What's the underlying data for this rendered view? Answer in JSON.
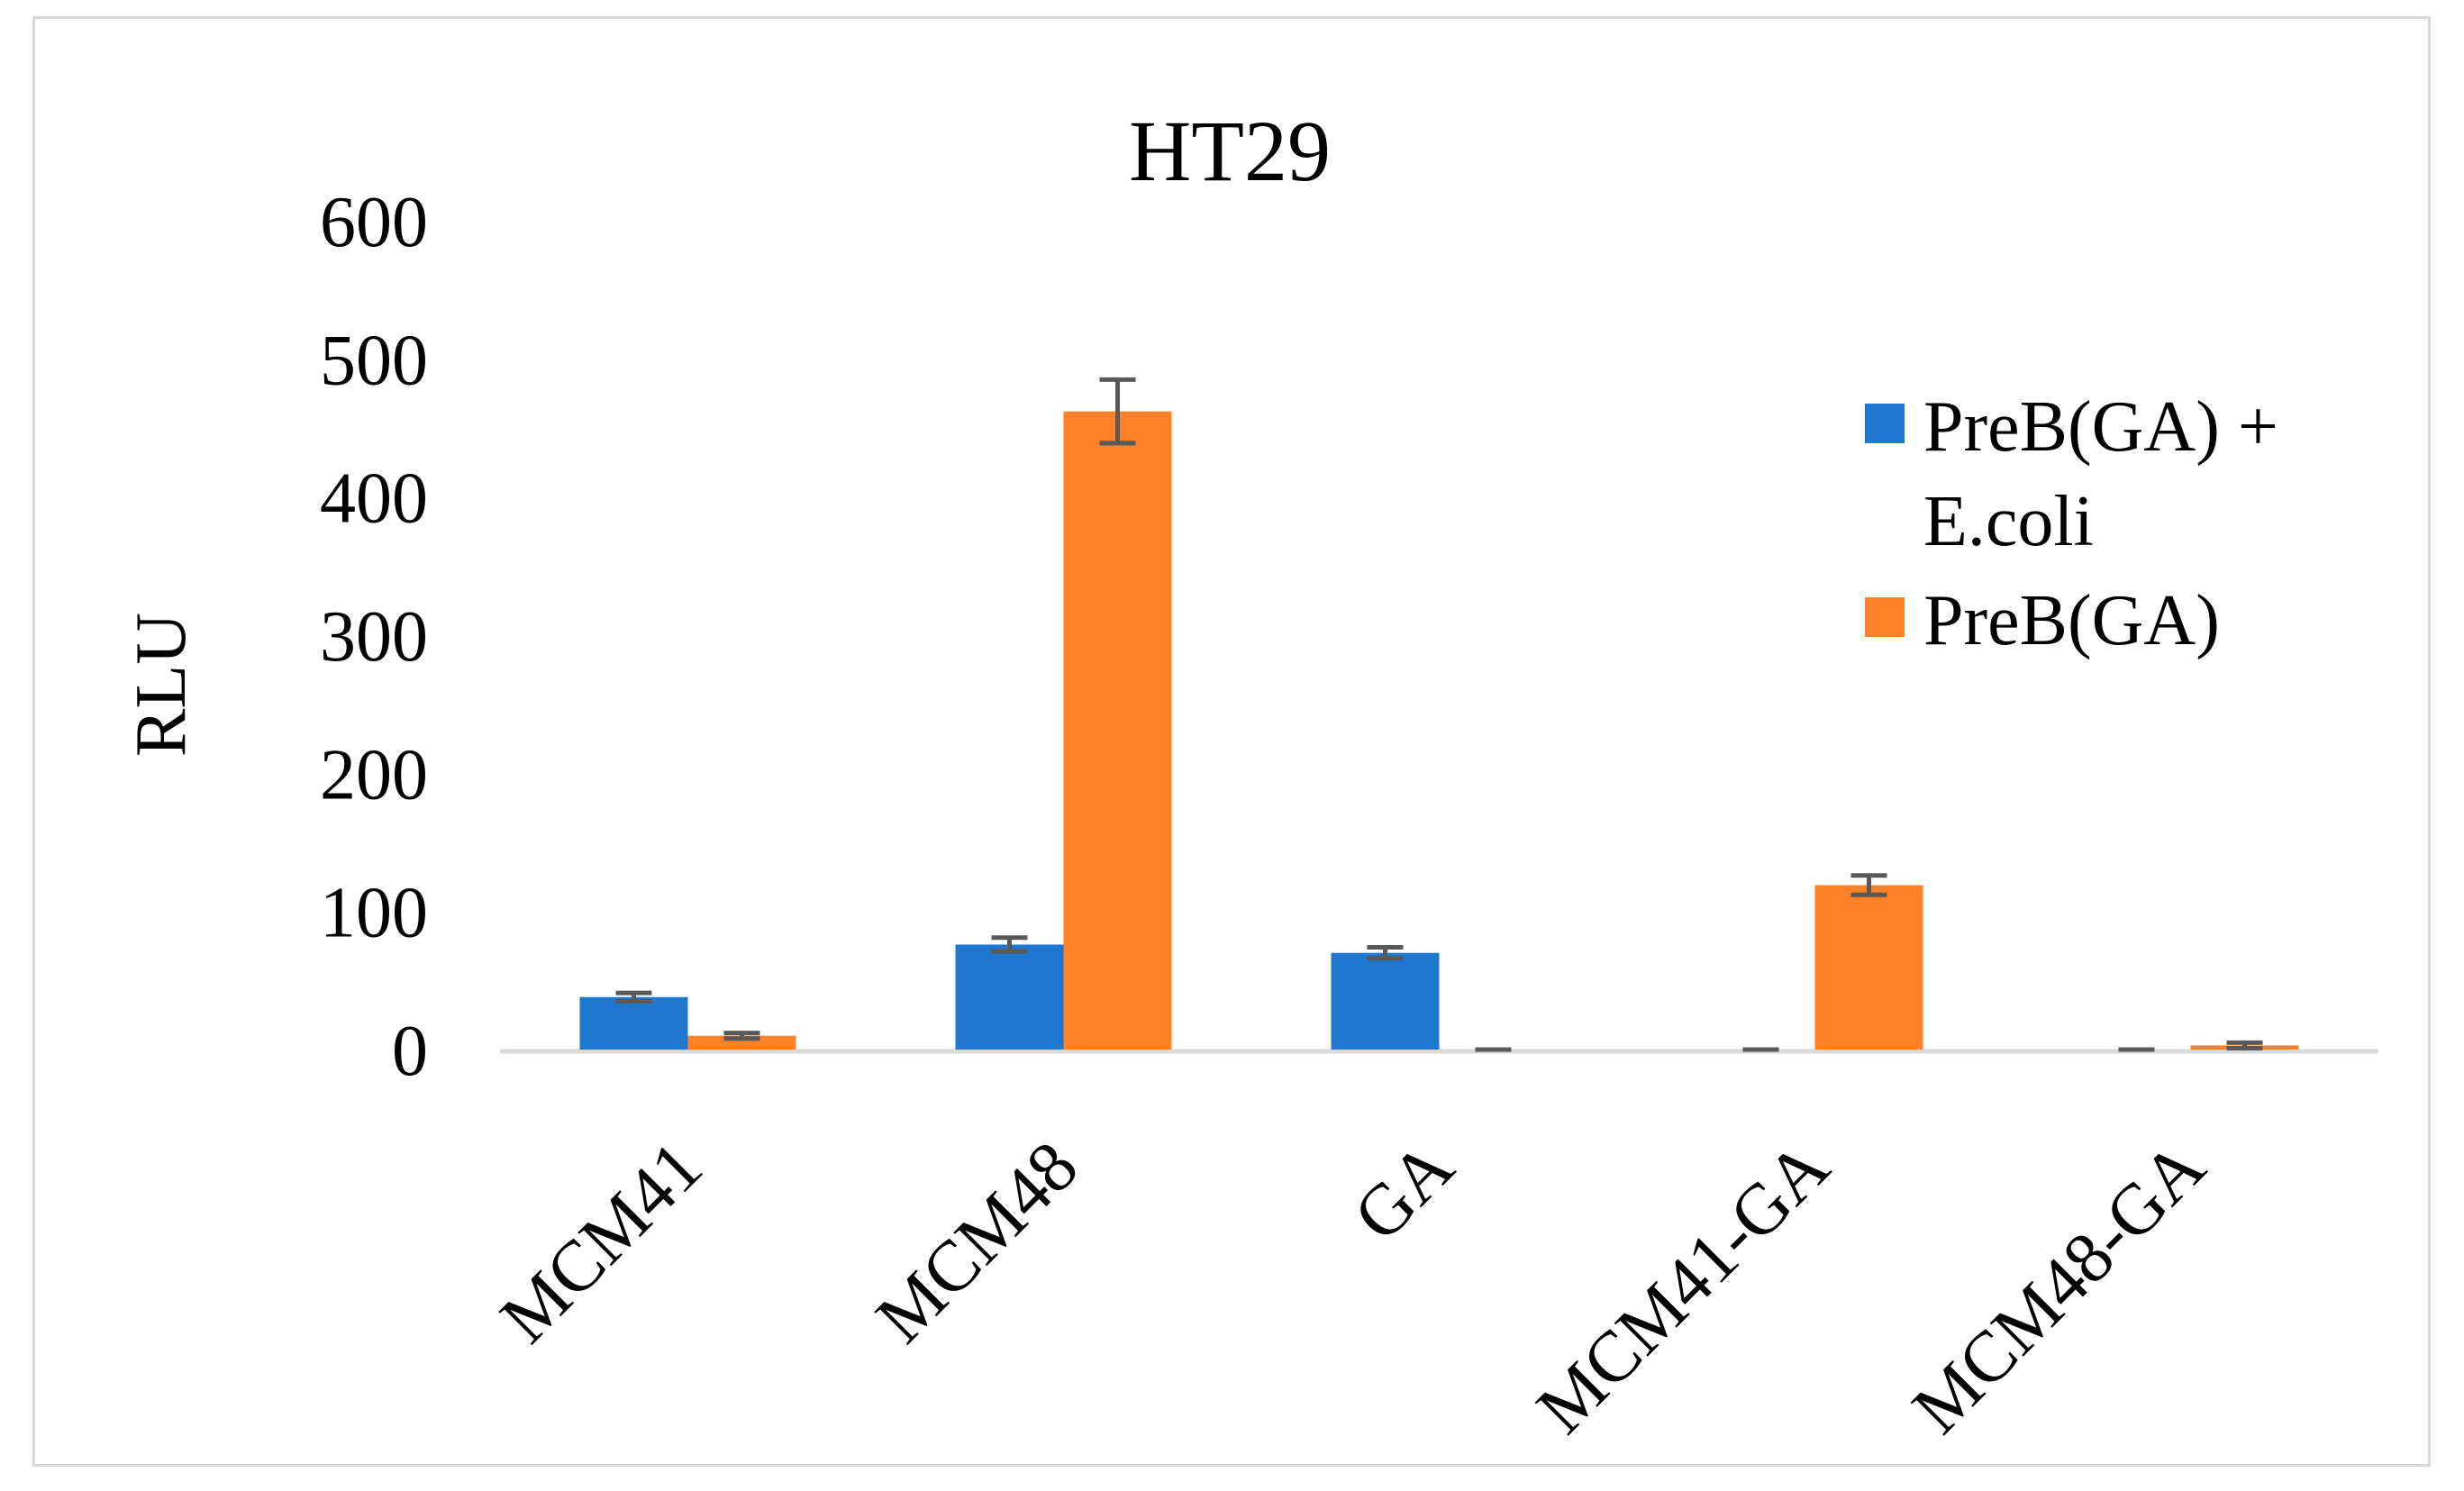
{
  "chart_data": {
    "type": "bar",
    "title": "HT29",
    "xlabel": "",
    "ylabel": "RLU",
    "ylim": [
      0,
      600
    ],
    "yticks": [
      0,
      100,
      200,
      300,
      400,
      500,
      600
    ],
    "grid": false,
    "legend_position": "right",
    "categories": [
      "MCM41",
      "MCM48",
      "GA",
      "MCM41-GA",
      "MCM48-GA"
    ],
    "series": [
      {
        "name": "PreB(GA) + E.coli",
        "legend_lines": [
          "PreB(GA) +",
          "E.coli"
        ],
        "color": "#1f77d0",
        "values": [
          38,
          76,
          70,
          0,
          0
        ],
        "errors": [
          3,
          5,
          4,
          0,
          0
        ]
      },
      {
        "name": "PreB(GA)",
        "legend_lines": [
          "PreB(GA)"
        ],
        "color": "#ff8129",
        "values": [
          10,
          462,
          0,
          119,
          3
        ],
        "errors": [
          2,
          23,
          0,
          7,
          2
        ]
      }
    ],
    "axis_color": "#d9d9d9",
    "error_bar_color": "#595959"
  }
}
